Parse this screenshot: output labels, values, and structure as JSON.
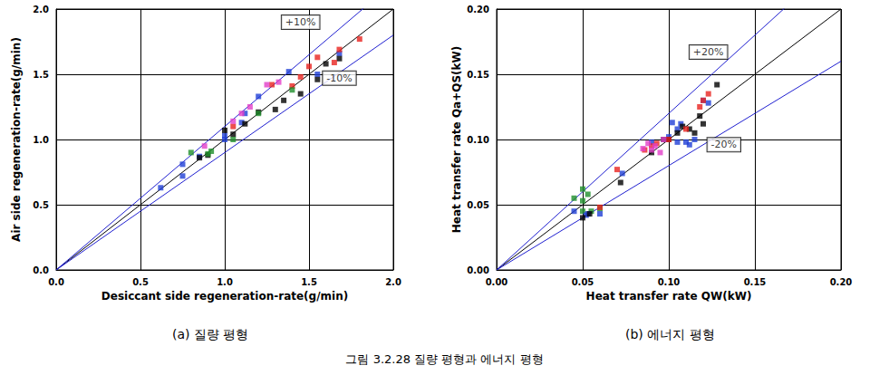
{
  "figure_caption": "그림 3.2.28 질량 평형과 에너지 평형",
  "chart_data": [
    {
      "type": "scatter",
      "caption": "(a) 질량 평형",
      "x_label": "Desiccant side regeneration-rate(g/min)",
      "y_label": "Air side regeneration-rate(g/min)",
      "xlim": [
        0,
        2
      ],
      "ylim": [
        0,
        2
      ],
      "xticks": [
        {
          "value": 0,
          "label": "0.0"
        },
        {
          "value": 0.5,
          "label": "0.5"
        },
        {
          "value": 1,
          "label": "1.0"
        },
        {
          "value": 1.5,
          "label": "1.5"
        },
        {
          "value": 2,
          "label": "2.0"
        }
      ],
      "yticks": [
        {
          "value": 0,
          "label": "0.0"
        },
        {
          "value": 0.5,
          "label": "0.5"
        },
        {
          "value": 1,
          "label": "1.0"
        },
        {
          "value": 1.5,
          "label": "1.5"
        },
        {
          "value": 2,
          "label": "2.0"
        }
      ],
      "grid": true,
      "marker": "square",
      "lines": [
        {
          "x": [
            0,
            2
          ],
          "y": [
            0,
            2
          ],
          "color": "#000000"
        },
        {
          "x": [
            0,
            2
          ],
          "y": [
            0,
            2.2
          ],
          "color": "#2020d0"
        },
        {
          "x": [
            0,
            2
          ],
          "y": [
            0,
            1.8
          ],
          "color": "#2020d0"
        }
      ],
      "annotations": [
        {
          "text": "+10%",
          "x": 1.45,
          "y": 1.9
        },
        {
          "text": "-10%",
          "x": 1.68,
          "y": 1.47
        }
      ],
      "series": [
        {
          "color": "#1f3fd6",
          "x": [
            0.62,
            0.75,
            0.75,
            0.85,
            1.0,
            1.0,
            1.1,
            1.12,
            1.2,
            1.38,
            1.55,
            1.68
          ],
          "y": [
            0.63,
            0.72,
            0.81,
            0.87,
            1.0,
            1.03,
            1.13,
            1.2,
            1.33,
            1.52,
            1.5,
            1.66
          ]
        },
        {
          "color": "#000000",
          "x": [
            0.85,
            0.9,
            1.0,
            1.05,
            1.12,
            1.2,
            1.3,
            1.35,
            1.45,
            1.55,
            1.6,
            1.68
          ],
          "y": [
            0.86,
            0.88,
            1.07,
            1.04,
            1.12,
            1.21,
            1.23,
            1.3,
            1.35,
            1.46,
            1.58,
            1.62
          ]
        },
        {
          "color": "#e8231f",
          "x": [
            1.05,
            1.28,
            1.4,
            1.45,
            1.5,
            1.55,
            1.65,
            1.68,
            1.8
          ],
          "y": [
            1.1,
            1.42,
            1.41,
            1.48,
            1.56,
            1.63,
            1.59,
            1.69,
            1.77
          ]
        },
        {
          "color": "#1e8f2a",
          "x": [
            0.8,
            0.9,
            0.92,
            1.05,
            1.2,
            1.4
          ],
          "y": [
            0.9,
            0.89,
            0.91,
            1.0,
            1.2,
            1.38
          ]
        },
        {
          "color": "#e23fc8",
          "x": [
            0.88,
            1.05,
            1.1,
            1.15,
            1.25,
            1.32
          ],
          "y": [
            0.95,
            1.14,
            1.2,
            1.25,
            1.42,
            1.44
          ]
        }
      ]
    },
    {
      "type": "scatter",
      "caption": "(b) 에너지 평형",
      "x_label": "Heat transfer rate QW(kW)",
      "y_label": "Heat transfer rate Qa+QS(kW)",
      "xlim": [
        0,
        0.2
      ],
      "ylim": [
        0,
        0.2
      ],
      "xticks": [
        {
          "value": 0,
          "label": "0.00"
        },
        {
          "value": 0.05,
          "label": "0.05"
        },
        {
          "value": 0.1,
          "label": "0.10"
        },
        {
          "value": 0.15,
          "label": "0.15"
        },
        {
          "value": 0.2,
          "label": "0.20"
        }
      ],
      "yticks": [
        {
          "value": 0,
          "label": "0.00"
        },
        {
          "value": 0.05,
          "label": "0.05"
        },
        {
          "value": 0.1,
          "label": "0.10"
        },
        {
          "value": 0.15,
          "label": "0.15"
        },
        {
          "value": 0.2,
          "label": "0.20"
        }
      ],
      "grid": true,
      "marker": "square",
      "lines": [
        {
          "x": [
            0,
            0.2
          ],
          "y": [
            0,
            0.2
          ],
          "color": "#000000"
        },
        {
          "x": [
            0,
            0.2
          ],
          "y": [
            0,
            0.24
          ],
          "color": "#2020d0"
        },
        {
          "x": [
            0,
            0.2
          ],
          "y": [
            0,
            0.16
          ],
          "color": "#2020d0"
        }
      ],
      "annotations": [
        {
          "text": "+20%",
          "x": 0.123,
          "y": 0.167
        },
        {
          "text": "-20%",
          "x": 0.132,
          "y": 0.096
        }
      ],
      "series": [
        {
          "color": "#1e8f2a",
          "x": [
            0.045,
            0.05,
            0.05,
            0.053,
            0.055,
            0.06,
            0.05
          ],
          "y": [
            0.055,
            0.062,
            0.053,
            0.058,
            0.045,
            0.047,
            0.045
          ]
        },
        {
          "color": "#1f3fd6",
          "x": [
            0.045,
            0.052,
            0.053,
            0.06,
            0.073,
            0.09,
            0.1,
            0.102,
            0.105,
            0.107,
            0.11,
            0.112,
            0.115,
            0.12,
            0.123,
            0.105
          ],
          "y": [
            0.045,
            0.042,
            0.043,
            0.043,
            0.074,
            0.098,
            0.102,
            0.113,
            0.108,
            0.112,
            0.098,
            0.096,
            0.1,
            0.13,
            0.128,
            0.098
          ]
        },
        {
          "color": "#000000",
          "x": [
            0.05,
            0.054,
            0.072,
            0.09,
            0.097,
            0.1,
            0.105,
            0.108,
            0.112,
            0.118,
            0.12,
            0.128,
            0.115
          ],
          "y": [
            0.04,
            0.043,
            0.067,
            0.09,
            0.1,
            0.1,
            0.105,
            0.11,
            0.108,
            0.118,
            0.112,
            0.142,
            0.105
          ]
        },
        {
          "color": "#e8231f",
          "x": [
            0.06,
            0.07,
            0.086,
            0.09,
            0.093,
            0.1,
            0.11,
            0.118,
            0.12,
            0.123
          ],
          "y": [
            0.048,
            0.077,
            0.092,
            0.095,
            0.097,
            0.1,
            0.108,
            0.125,
            0.13,
            0.135
          ]
        },
        {
          "color": "#e23fc8",
          "x": [
            0.085,
            0.088,
            0.09,
            0.092,
            0.095,
            0.097
          ],
          "y": [
            0.093,
            0.097,
            0.092,
            0.095,
            0.09,
            0.1
          ]
        }
      ]
    }
  ]
}
